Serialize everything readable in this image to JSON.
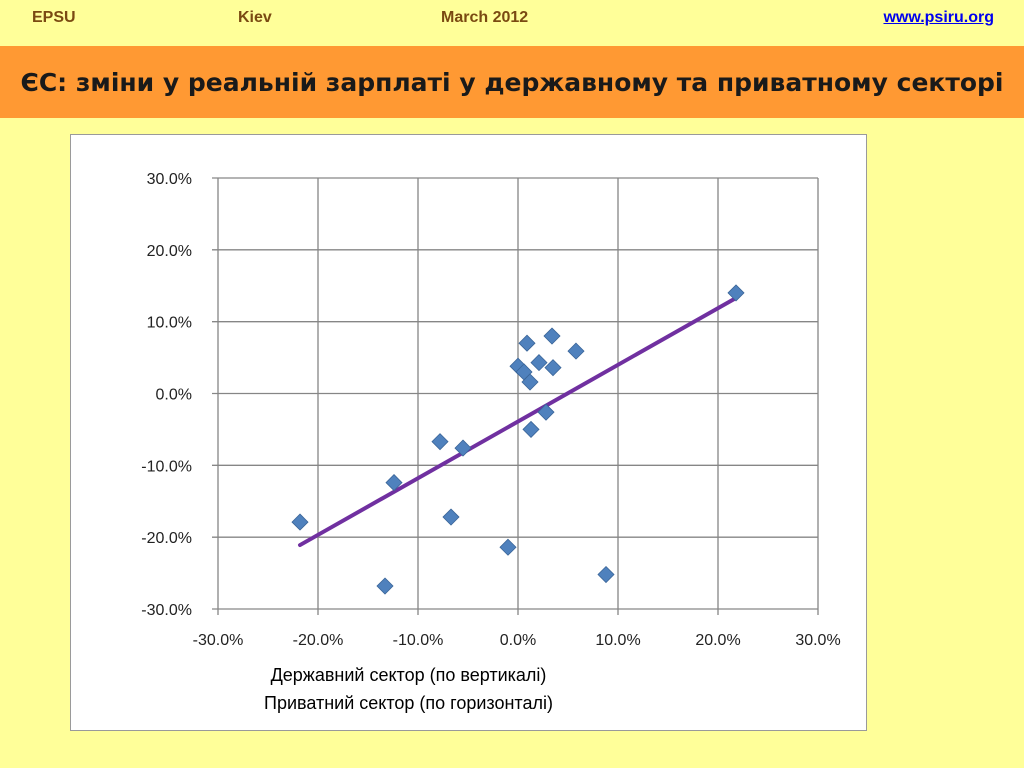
{
  "header": {
    "org": "EPSU",
    "city": "Kiev",
    "date": "March 2012",
    "url": "www.psiru.org"
  },
  "title": "ЄС: зміни у реальній зарплаті у державному та приватному секторі",
  "colors": {
    "background": "#ffff99",
    "title_band": "#ff9933",
    "points": "#4f81bd",
    "trendline": "#7030a0",
    "header_text": "#7a4a12"
  },
  "chart_data": {
    "type": "scatter",
    "xlim": [
      -0.3,
      0.3
    ],
    "ylim": [
      -0.3,
      0.3
    ],
    "x_ticks": [
      "-30.0%",
      "-20.0%",
      "-10.0%",
      "0.0%",
      "10.0%",
      "20.0%",
      "30.0%"
    ],
    "y_ticks": [
      "30.0%",
      "20.0%",
      "10.0%",
      "0.0%",
      "-10.0%",
      "-20.0%",
      "-30.0%"
    ],
    "grid": true,
    "points": [
      {
        "x": -0.218,
        "y": -0.179
      },
      {
        "x": -0.133,
        "y": -0.268
      },
      {
        "x": -0.124,
        "y": -0.124
      },
      {
        "x": -0.078,
        "y": -0.067
      },
      {
        "x": -0.067,
        "y": -0.172
      },
      {
        "x": -0.055,
        "y": -0.076
      },
      {
        "x": -0.01,
        "y": -0.214
      },
      {
        "x": 0.0,
        "y": 0.038
      },
      {
        "x": 0.006,
        "y": 0.03
      },
      {
        "x": 0.009,
        "y": 0.07
      },
      {
        "x": 0.012,
        "y": 0.016
      },
      {
        "x": 0.013,
        "y": -0.05
      },
      {
        "x": 0.021,
        "y": 0.043
      },
      {
        "x": 0.028,
        "y": -0.026
      },
      {
        "x": 0.034,
        "y": 0.08
      },
      {
        "x": 0.035,
        "y": 0.036
      },
      {
        "x": 0.058,
        "y": 0.059
      },
      {
        "x": 0.088,
        "y": -0.252
      },
      {
        "x": 0.218,
        "y": 0.14
      }
    ],
    "trendline": {
      "x": [
        -0.218,
        0.218
      ],
      "y": [
        -0.211,
        0.133
      ]
    },
    "caption_line1": "Державний сектор (по вертикалі)",
    "caption_line2": "Приватний сектор (по горизонталі)"
  }
}
